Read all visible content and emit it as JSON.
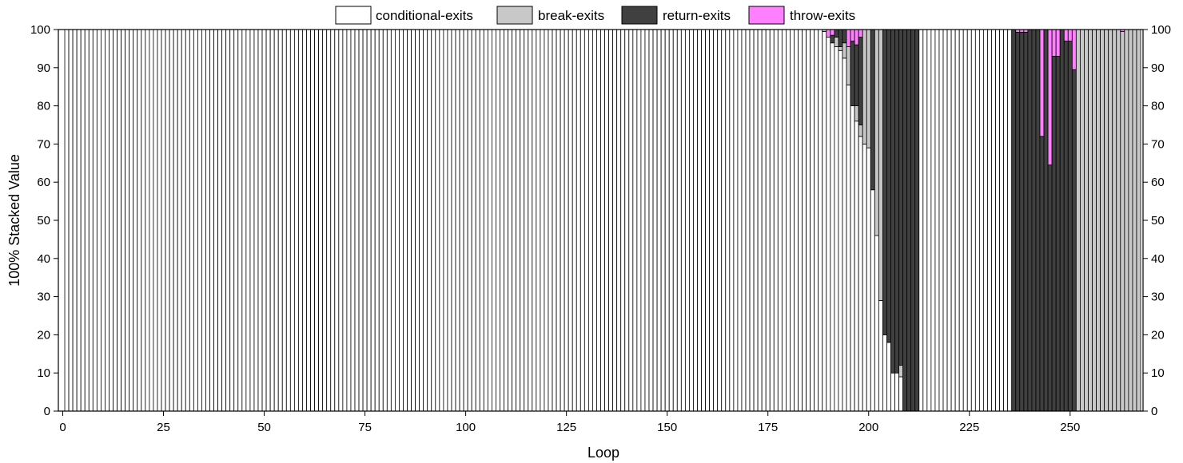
{
  "chart_data": {
    "type": "bar",
    "stacked": "100%",
    "xlabel": "Loop",
    "ylabel": "100% Stacked Value",
    "xlim": [
      0,
      267
    ],
    "ylim": [
      0,
      100
    ],
    "x_ticks": [
      0,
      25,
      50,
      75,
      100,
      125,
      150,
      175,
      200,
      225,
      250
    ],
    "y_ticks": [
      0,
      10,
      20,
      30,
      40,
      50,
      60,
      70,
      80,
      90,
      100
    ],
    "y_axis_both_sides": true,
    "legend_position": "top",
    "x": [
      189,
      190,
      191,
      192,
      193,
      194,
      195,
      196,
      197,
      198,
      199,
      200,
      201,
      202,
      203,
      204,
      205,
      206,
      207,
      208,
      209,
      210,
      211,
      212,
      236,
      237,
      238,
      239,
      240,
      241,
      242,
      243,
      244,
      245,
      246,
      247,
      248,
      249,
      250,
      251,
      252,
      253,
      254,
      255,
      256,
      257,
      258,
      259,
      260,
      261,
      262,
      263,
      264,
      265,
      266,
      267
    ],
    "default_point": {
      "conditional-exits": 100,
      "break-exits": 0,
      "return-exits": 0,
      "throw-exits": 0
    },
    "series": [
      {
        "name": "conditional-exits",
        "color": "#ffffff",
        "values": [
          99.5,
          98,
          96.5,
          95.5,
          94.5,
          92.5,
          85.5,
          80,
          76,
          72,
          70,
          69,
          58,
          46,
          29,
          20,
          18,
          10,
          10,
          9,
          0,
          0,
          0,
          0,
          0,
          0,
          0,
          0,
          0,
          0,
          0,
          0,
          0,
          0,
          0,
          0,
          0,
          0,
          0,
          0,
          0,
          0,
          0,
          0,
          0,
          0,
          0,
          0,
          0,
          0,
          0,
          0,
          0,
          0,
          0,
          0
        ]
      },
      {
        "name": "break-exits",
        "color": "#c8c8c8",
        "values": [
          0.5,
          0,
          0,
          2.5,
          1,
          4,
          10,
          0,
          4,
          3,
          30,
          31,
          0,
          54,
          71,
          0,
          0,
          0,
          0,
          3,
          0,
          0,
          0,
          0,
          0,
          0,
          0,
          0,
          0,
          0,
          0,
          0,
          0,
          0,
          0,
          0,
          0,
          0,
          0,
          0,
          100,
          100,
          100,
          100,
          100,
          100,
          100,
          100,
          100,
          100,
          100,
          99.5,
          100,
          100,
          100,
          100
        ]
      },
      {
        "name": "return-exits",
        "color": "#404040",
        "values": [
          0,
          0,
          2,
          2,
          4.5,
          3.5,
          0,
          17,
          16,
          23,
          0,
          0,
          42,
          0,
          0,
          80,
          82,
          90,
          90,
          88,
          100,
          100,
          100,
          100,
          100,
          99.3,
          99.3,
          99.3,
          100,
          100,
          100,
          72,
          100,
          64.5,
          93,
          93,
          100,
          97,
          97,
          89.5,
          0,
          0,
          0,
          0,
          0,
          0,
          0,
          0,
          0,
          0,
          0,
          0,
          0,
          0,
          0,
          0
        ]
      },
      {
        "name": "throw-exits",
        "color": "#ff80ff",
        "values": [
          0,
          2,
          1.5,
          0,
          0,
          0,
          4.5,
          3,
          4,
          2,
          0,
          0,
          0,
          0,
          0,
          0,
          0,
          0,
          0,
          0,
          0,
          0,
          0,
          0,
          0,
          0.7,
          0.7,
          0.7,
          0,
          0,
          0,
          28,
          0,
          35.5,
          7,
          7,
          0,
          3,
          3,
          10.5,
          0,
          0,
          0,
          0,
          0,
          0,
          0,
          0,
          0,
          0,
          0,
          0.5,
          0,
          0,
          0,
          0
        ]
      }
    ]
  }
}
